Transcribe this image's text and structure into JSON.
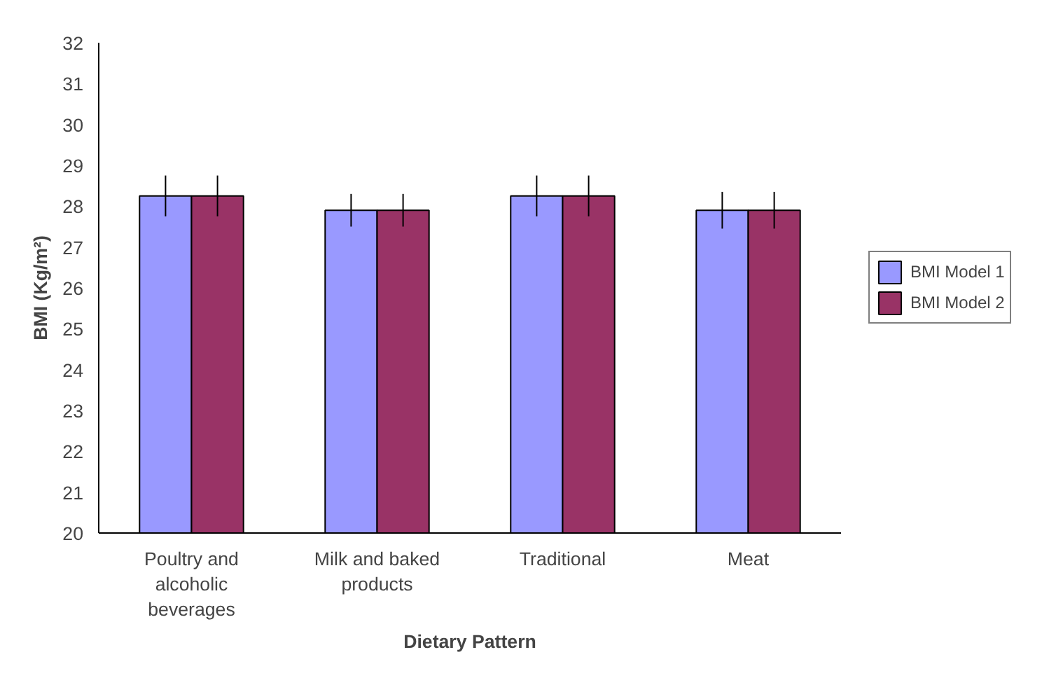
{
  "chart_data": {
    "type": "bar",
    "xlabel": "Dietary Pattern",
    "ylabel": "BMI (Kg/m²)",
    "categories": [
      "Poultry and\nalcoholic\nbeverages",
      "Milk and baked\nproducts",
      "Traditional",
      "Meat"
    ],
    "series": [
      {
        "name": "BMI Model 1",
        "color": "#9999ff",
        "values": [
          28.25,
          27.9,
          28.25,
          27.9
        ],
        "errors": [
          0.5,
          0.4,
          0.5,
          0.45
        ]
      },
      {
        "name": "BMI Model 2",
        "color": "#993366",
        "values": [
          28.25,
          27.9,
          28.25,
          27.9
        ],
        "errors": [
          0.5,
          0.4,
          0.5,
          0.45
        ]
      }
    ],
    "ylim": [
      20,
      32
    ],
    "yticks": [
      20,
      21,
      22,
      23,
      24,
      25,
      26,
      27,
      28,
      29,
      30,
      31,
      32
    ],
    "grid": false,
    "legend": "right"
  }
}
